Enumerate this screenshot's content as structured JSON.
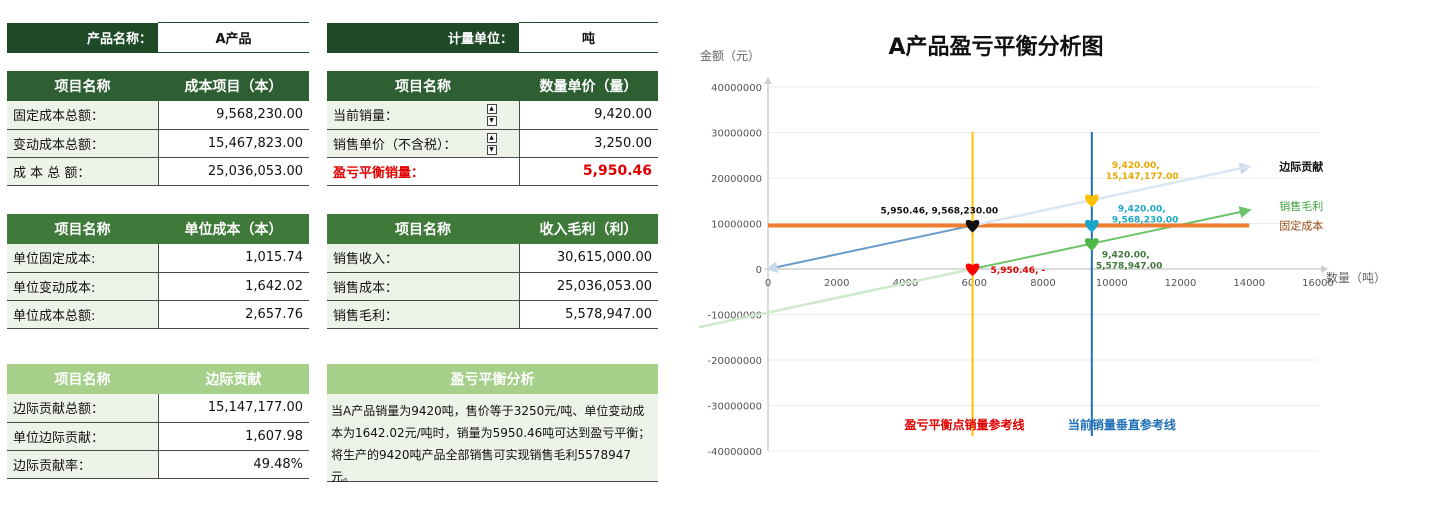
{
  "top_left": {
    "label": "产品名称：",
    "value": "A产品"
  },
  "top_right": {
    "label": "计量单位：",
    "value": "吨"
  },
  "cost_table": {
    "headers": [
      "项目名称",
      "成本项目（本）"
    ],
    "rows": [
      {
        "label": "固定成本总额：",
        "value": "9,568,230.00"
      },
      {
        "label": "变动成本总额：",
        "value": "15,467,823.00"
      },
      {
        "label": "成  本  总  额：",
        "value": "25,036,053.00"
      }
    ]
  },
  "qty_table": {
    "headers": [
      "项目名称",
      "数量单价（量）"
    ],
    "rows": [
      {
        "label": "当前销量：",
        "value": "9,420.00"
      },
      {
        "label": "销售单价（不含税）：",
        "value": "3,250.00"
      },
      {
        "label": "盈亏平衡销量：",
        "value": "5,950.46"
      }
    ]
  },
  "unit_cost_table": {
    "headers": [
      "项目名称",
      "单位成本（本）"
    ],
    "rows": [
      {
        "label": "单位固定成本:",
        "value": "1,015.74"
      },
      {
        "label": "单位变动成本:",
        "value": "1,642.02"
      },
      {
        "label": "单位成本总额:",
        "value": "2,657.76"
      }
    ]
  },
  "profit_table": {
    "headers": [
      "项目名称",
      "收入毛利（利）"
    ],
    "rows": [
      {
        "label": "销售收入：",
        "value": "30,615,000.00"
      },
      {
        "label": "销售成本：",
        "value": "25,036,053.00"
      },
      {
        "label": "销售毛利：",
        "value": "5,578,947.00"
      }
    ]
  },
  "margin_table": {
    "headers": [
      "项目名称",
      "边际贡献"
    ],
    "rows": [
      {
        "label": "边际贡献总额：",
        "value": "15,147,177.00"
      },
      {
        "label": "单位边际贡献：",
        "value": "1,607.98"
      },
      {
        "label": "边际贡献率：",
        "value": "49.48%"
      }
    ]
  },
  "analysis": {
    "header": "盈亏平衡分析",
    "text": "当A产品销量为9420吨，售价等于3250元/吨、单位变动成本为1642.02元/吨时，销量为5950.46吨可达到盈亏平衡；将生产的9420吨产品全部销售可实现销售毛利5578947元。"
  },
  "colors": {
    "dark_green": "#2e5f32",
    "mid_green": "#3f7a3a",
    "light_green": "#a6d08a",
    "red": "#e00000"
  },
  "chart_data": {
    "type": "line",
    "title": "A产品盈亏平衡分析图",
    "xlabel": "数量（吨）",
    "ylabel": "金额（元）",
    "xlim": [
      0,
      16000
    ],
    "ylim": [
      -40000000,
      40000000
    ],
    "x_ticks": [
      "0",
      "2000",
      "4000",
      "6000",
      "8000",
      "10000",
      "12000",
      "14000",
      "16000"
    ],
    "y_ticks": [
      "40000000",
      "30000000",
      "20000000",
      "10000000",
      "0",
      "-10000000",
      "-20000000",
      "-30000000",
      "-40000000"
    ],
    "series": [
      {
        "name": "边际贡献",
        "color": "#c9d9ec",
        "x": [
          0,
          14000
        ],
        "y": [
          0,
          22511720
        ]
      },
      {
        "name": "销售毛利",
        "color": "#6cc36a",
        "x": [
          -2000,
          14000
        ],
        "y": [
          -12784190,
          12943490
        ]
      },
      {
        "name": "固定成本",
        "color": "#ed7d31",
        "x": [
          0,
          14000
        ],
        "y": [
          9568230,
          9568230
        ]
      }
    ],
    "reference_lines": [
      {
        "name": "盈亏平衡点销量参考线",
        "x": 5950.46,
        "color": "#ffc000",
        "label_color": "#e00000"
      },
      {
        "name": "当前销量垂直参考线",
        "x": 9420,
        "color": "#1f6fb5",
        "label_color": "#1f6fb5"
      }
    ],
    "points": [
      {
        "x": 5950.46,
        "y": 9568230,
        "label": "5,950.46, 9,568,230.00",
        "color": "#111111",
        "label_color": "#111111"
      },
      {
        "x": 5950.46,
        "y": 0,
        "label": "5,950.46, -",
        "color": "#ff0000",
        "label_color": "#e00000"
      },
      {
        "x": 9420,
        "y": 15147177,
        "label": "9,420.00, 15,147,177.00",
        "color": "#ffc000",
        "label_color": "#e8a800"
      },
      {
        "x": 9420,
        "y": 9568230,
        "label": "9,420.00, 9,568,230.00",
        "color": "#1aa7c9",
        "label_color": "#1aa7c9"
      },
      {
        "x": 9420,
        "y": 5578947,
        "label": "9,420.00, 5,578,947.00",
        "color": "#4cb847",
        "label_color": "#3f7a3a"
      }
    ]
  }
}
